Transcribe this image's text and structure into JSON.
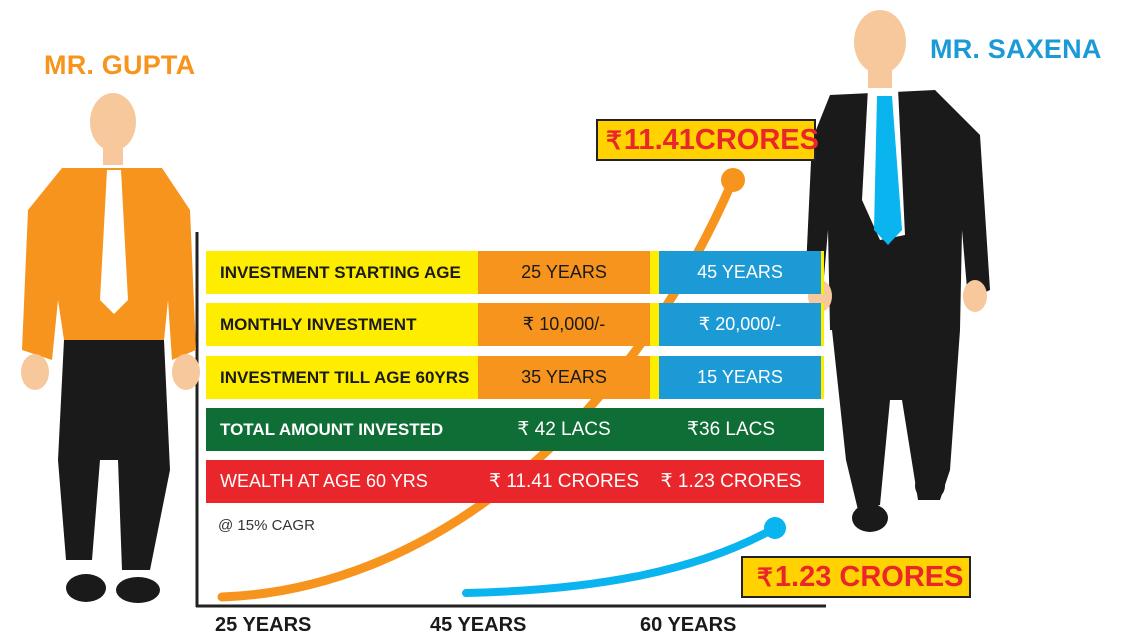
{
  "people": {
    "gupta": {
      "name": "MR. GUPTA",
      "color": "#f7941d"
    },
    "saxena": {
      "name": "MR. SAXENA",
      "color": "#1b9ad6"
    }
  },
  "callouts": {
    "top": {
      "symbol": "₹",
      "value": "11.41CRORES"
    },
    "bottom": {
      "symbol": "₹",
      "value": "1.23 CRORES"
    }
  },
  "table": {
    "rows": [
      {
        "label": "INVESTMENT STARTING AGE",
        "gupta": "25 YEARS",
        "saxena": "45 YEARS"
      },
      {
        "label": "MONTHLY INVESTMENT",
        "gupta": "₹ 10,000/-",
        "saxena": "₹ 20,000/-"
      },
      {
        "label": "INVESTMENT TILL AGE 60YRS",
        "gupta": "35 YEARS",
        "saxena": "15 YEARS"
      },
      {
        "label": "TOTAL AMOUNT INVESTED",
        "gupta": "₹ 42 LACS",
        "saxena": "₹36 LACS"
      },
      {
        "label": "WEALTH AT AGE 60 YRS",
        "gupta": "₹ 11.41 CRORES",
        "saxena": "₹ 1.23 CRORES"
      }
    ],
    "footnote": "@ 15% CAGR"
  },
  "axis": {
    "x_ticks": [
      "25 YEARS",
      "45 YEARS",
      "60 YEARS"
    ]
  },
  "colors": {
    "orange": "#f7941d",
    "blue": "#1b9ad6",
    "yellow": "#ffed00",
    "green": "#0f6e35",
    "red": "#e8262b",
    "callout_bg": "#ffd200"
  }
}
